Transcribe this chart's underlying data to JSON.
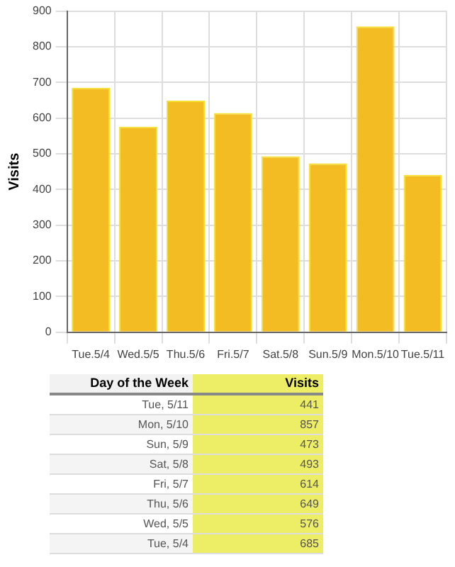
{
  "chart_data": [
    {
      "type": "bar",
      "ylabel": "Visits",
      "categories": [
        "Tue.5/4",
        "Wed.5/5",
        "Thu.5/6",
        "Fri.5/7",
        "Sat.5/8",
        "Sun.5/9",
        "Mon.5/10",
        "Tue.5/11"
      ],
      "values": [
        685,
        576,
        649,
        614,
        493,
        473,
        857,
        441
      ],
      "color": "#f2bc22",
      "ylim": [
        0,
        900
      ],
      "yticks": [
        0,
        100,
        200,
        300,
        400,
        500,
        600,
        700,
        800,
        900
      ],
      "grid": true
    },
    {
      "type": "other",
      "xlabel": "Day of the Week",
      "ylabel": "Visits",
      "categories": [
        "Tue, 5/11",
        "Mon, 5/10",
        "Sun, 5/9",
        "Sat, 5/8",
        "Fri, 5/7",
        "Thu, 5/6",
        "Wed, 5/5",
        "Tue, 5/4"
      ],
      "values": [
        441,
        857,
        473,
        493,
        614,
        649,
        576,
        685
      ],
      "color": "#eeee66",
      "data_labels": true
    }
  ]
}
